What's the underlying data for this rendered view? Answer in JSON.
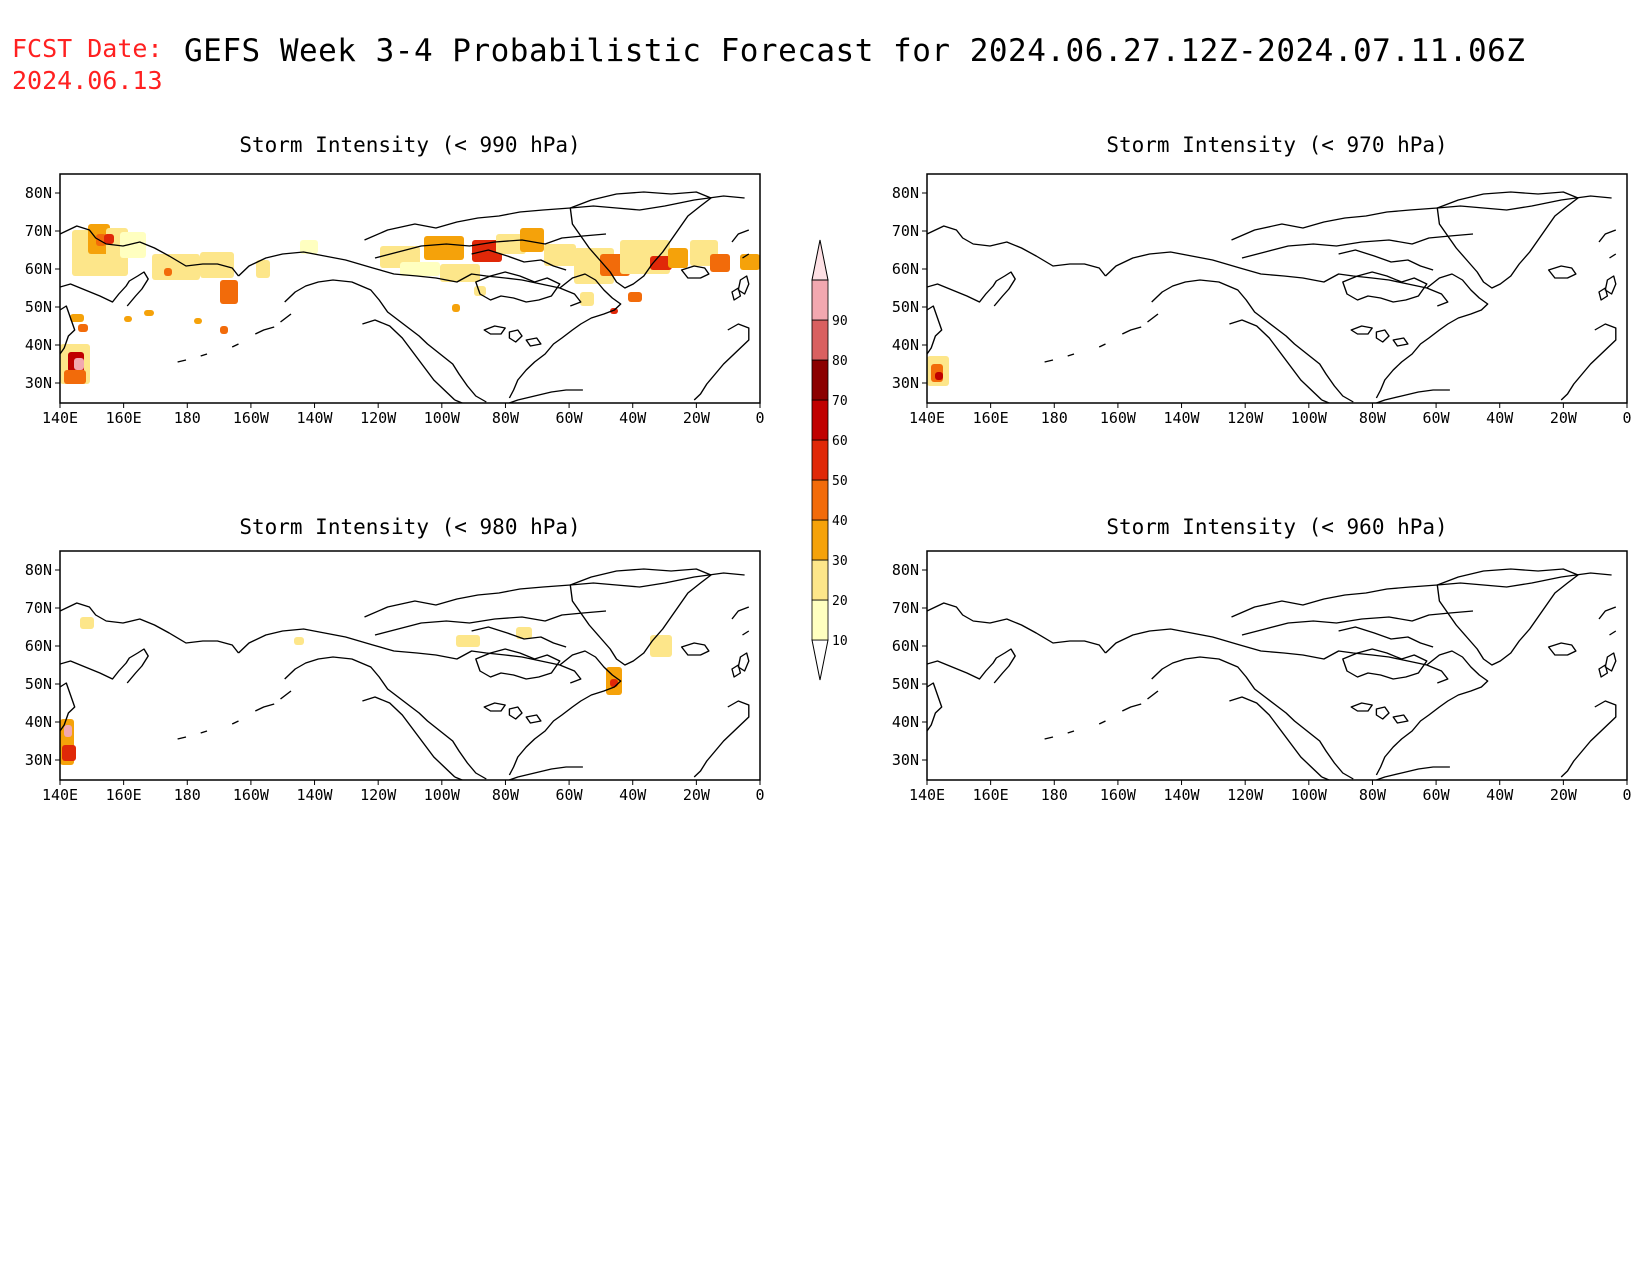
{
  "header": {
    "fcst_label": "FCST Date:",
    "fcst_date": "2024.06.13",
    "title": "GEFS Week 3-4 Probabilistic Forecast for 2024.06.27.12Z-2024.07.11.06Z"
  },
  "axes": {
    "lon_ticks": [
      "140E",
      "160E",
      "180",
      "160W",
      "140W",
      "120W",
      "100W",
      "80W",
      "60W",
      "40W",
      "20W",
      "0"
    ],
    "lat_ticks": [
      "80N",
      "70N",
      "60N",
      "50N",
      "40N",
      "30N"
    ]
  },
  "colorbar": {
    "levels": [
      "10",
      "20",
      "30",
      "40",
      "50",
      "60",
      "70",
      "80",
      "90"
    ],
    "colors": [
      "#ffffc0",
      "#fde68a",
      "#f5a20a",
      "#f26b0a",
      "#e02808",
      "#c00000",
      "#8b0000",
      "#d96060",
      "#f2a8b0",
      "#fde0e4"
    ]
  },
  "panels": [
    {
      "id": "p990",
      "title": "Storm Intensity (< 990 hPa)"
    },
    {
      "id": "p970",
      "title": "Storm Intensity (< 970 hPa)"
    },
    {
      "id": "p980",
      "title": "Storm Intensity (< 980 hPa)"
    },
    {
      "id": "p960",
      "title": "Storm Intensity (< 960 hPa)"
    }
  ]
}
